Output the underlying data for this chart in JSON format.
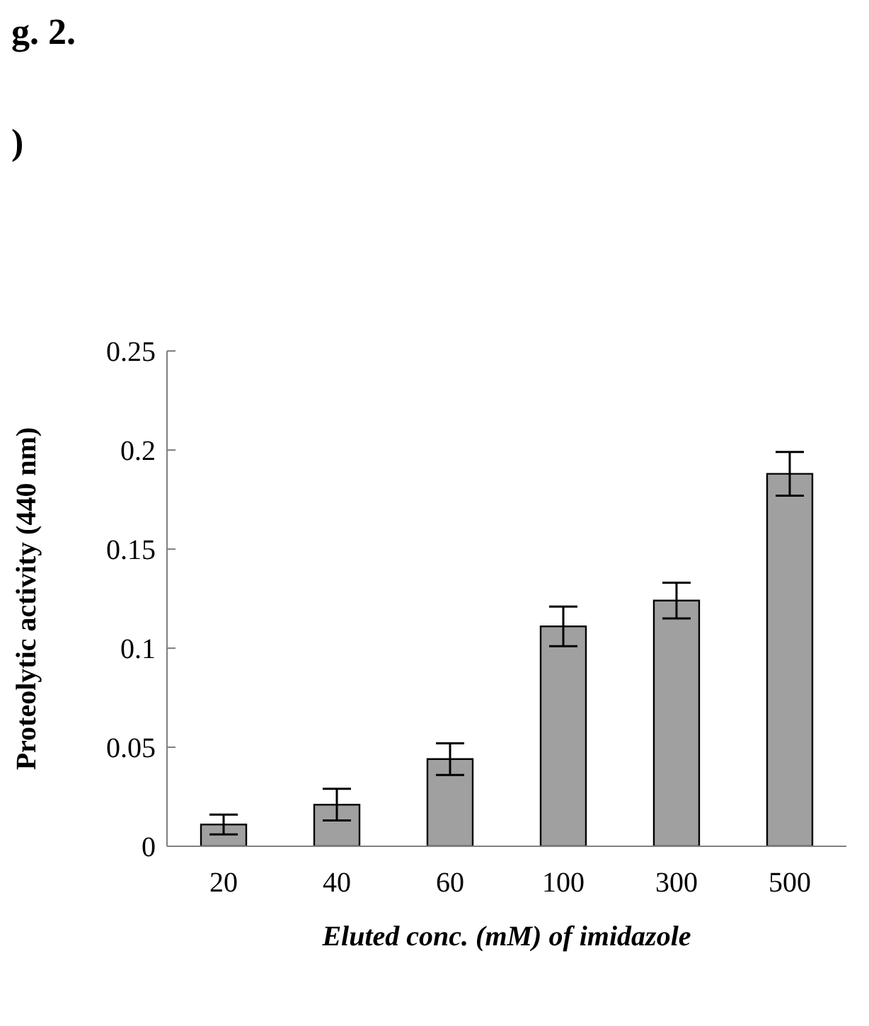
{
  "chart_data": {
    "type": "bar",
    "xlabel": "Eluted conc. (mM) of imidazole",
    "ylabel": "Proteolytic activity (440 nm)",
    "annotations": [
      "g. 2.",
      ")"
    ],
    "categories": [
      "20",
      "40",
      "60",
      "100",
      "300",
      "500"
    ],
    "values": [
      0.011,
      0.021,
      0.044,
      0.111,
      0.124,
      0.188
    ],
    "errors": [
      0.005,
      0.008,
      0.008,
      0.01,
      0.009,
      0.011
    ],
    "color": "#a0a0a0",
    "ylim": [
      0,
      0.25
    ],
    "yticks": [
      0,
      0.05,
      0.1,
      0.15,
      0.2,
      0.25
    ]
  }
}
